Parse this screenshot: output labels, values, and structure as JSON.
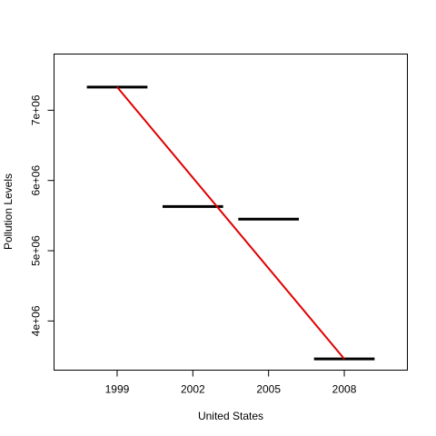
{
  "chart_data": {
    "type": "line",
    "title": "",
    "xlabel": "United States",
    "ylabel": "Pollution Levels",
    "x_ticks": [
      "1999",
      "2002",
      "2005",
      "2008"
    ],
    "y_ticks": [
      "4e+06",
      "5e+06",
      "6e+06",
      "7e+06"
    ],
    "y_tick_values": [
      4000000,
      5000000,
      6000000,
      7000000
    ],
    "xlim": [
      1996.5,
      2010.5
    ],
    "ylim": [
      3300000,
      7800000
    ],
    "grid": false,
    "series": [
      {
        "type": "segments",
        "color": "#000000",
        "x": [
          1999,
          2002,
          2005,
          2008
        ],
        "values": [
          7330000,
          5630000,
          5450000,
          3460000
        ]
      },
      {
        "type": "line",
        "color": "#e00000",
        "x": [
          1999,
          2008
        ],
        "values": [
          7330000,
          3460000
        ]
      }
    ]
  }
}
